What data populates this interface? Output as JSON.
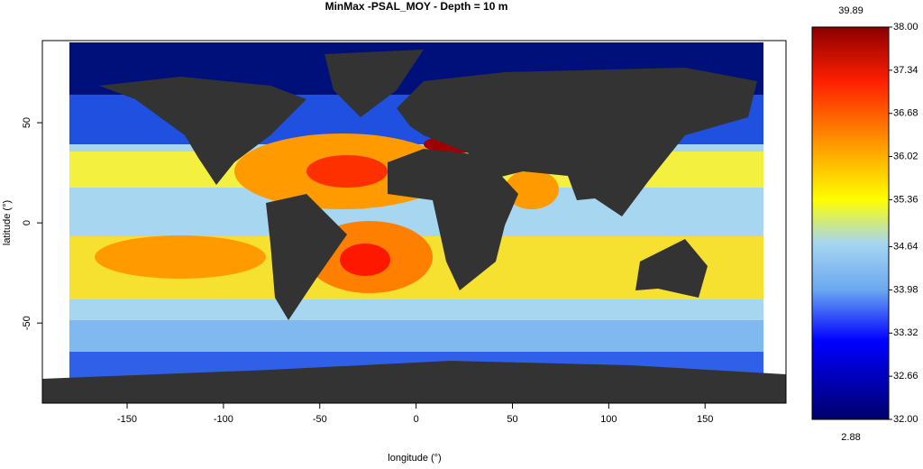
{
  "chart_data": {
    "type": "map",
    "title": "MinMax -PSAL_MOY - Depth = 10 m",
    "x_label": "longitude (°)",
    "y_label": "latitude (°)",
    "xlim": [
      -194,
      192
    ],
    "xticks": [
      -150,
      -100,
      -50,
      0,
      50,
      100,
      150
    ],
    "ylim": [
      -90,
      91
    ],
    "yticks": [
      -50,
      0,
      50
    ],
    "colorbar": {
      "lim": [
        32,
        38
      ],
      "ticks": [
        {
          "value": 32,
          "label": "32.00"
        },
        {
          "value": 32.66,
          "label": "32.66"
        },
        {
          "value": 33.32,
          "label": "33.32"
        },
        {
          "value": 33.98,
          "label": "33.98"
        },
        {
          "value": 34.64,
          "label": "34.64"
        },
        {
          "value": 35.36,
          "label": "35.36"
        },
        {
          "value": 36.02,
          "label": "36.02"
        },
        {
          "value": 36.68,
          "label": "36.68"
        },
        {
          "value": 37.34,
          "label": "37.34"
        },
        {
          "value": 38,
          "label": "38.00"
        }
      ],
      "max_label": "39.89",
      "min_label": "2.88"
    }
  }
}
